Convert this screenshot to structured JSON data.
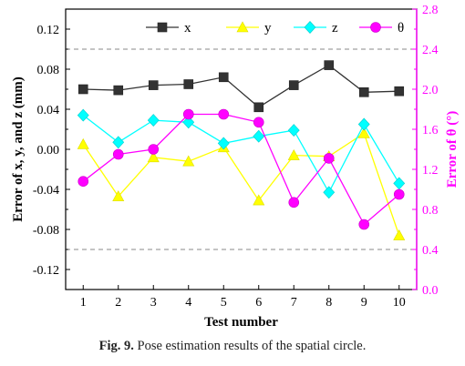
{
  "chart_data": {
    "type": "line",
    "xlabel": "Test number",
    "ylabel_left": "Error of x, y, and z (mm)",
    "ylabel_right": "Error of θ (°)",
    "x": [
      1,
      2,
      3,
      4,
      5,
      6,
      7,
      8,
      9,
      10
    ],
    "xlim": [
      0.5,
      10.5
    ],
    "ylim_left": [
      -0.14,
      0.14
    ],
    "ylim_right": [
      0.0,
      2.8
    ],
    "yticks_left": [
      -0.12,
      -0.08,
      -0.04,
      0.0,
      0.04,
      0.08,
      0.12
    ],
    "yticks_right": [
      0.0,
      0.4,
      0.8,
      1.2,
      1.6,
      2.0,
      2.4,
      2.8
    ],
    "reference_lines_left": [
      0.1,
      -0.1
    ],
    "legend_position": "top",
    "series": [
      {
        "name": "x",
        "axis": "left",
        "marker": "square",
        "color": "#333333",
        "values": [
          0.06,
          0.059,
          0.064,
          0.065,
          0.072,
          0.042,
          0.064,
          0.084,
          0.057,
          0.058
        ]
      },
      {
        "name": "y",
        "axis": "left",
        "marker": "triangle",
        "color": "#ffff00",
        "values": [
          0.005,
          -0.047,
          -0.008,
          -0.012,
          0.002,
          -0.051,
          -0.006,
          -0.007,
          0.016,
          -0.086
        ]
      },
      {
        "name": "z",
        "axis": "left",
        "marker": "diamond",
        "color": "#00ffff",
        "values": [
          0.034,
          0.007,
          0.029,
          0.027,
          0.006,
          0.013,
          0.019,
          -0.043,
          0.025,
          -0.034
        ]
      },
      {
        "name": "θ",
        "axis": "right",
        "marker": "circle",
        "color": "#ff00ff",
        "values": [
          1.08,
          1.35,
          1.4,
          1.75,
          1.75,
          1.67,
          0.87,
          1.31,
          0.65,
          0.95
        ]
      }
    ]
  },
  "caption": {
    "label": "Fig. 9.",
    "text": " Pose estimation results of the spatial circle."
  }
}
